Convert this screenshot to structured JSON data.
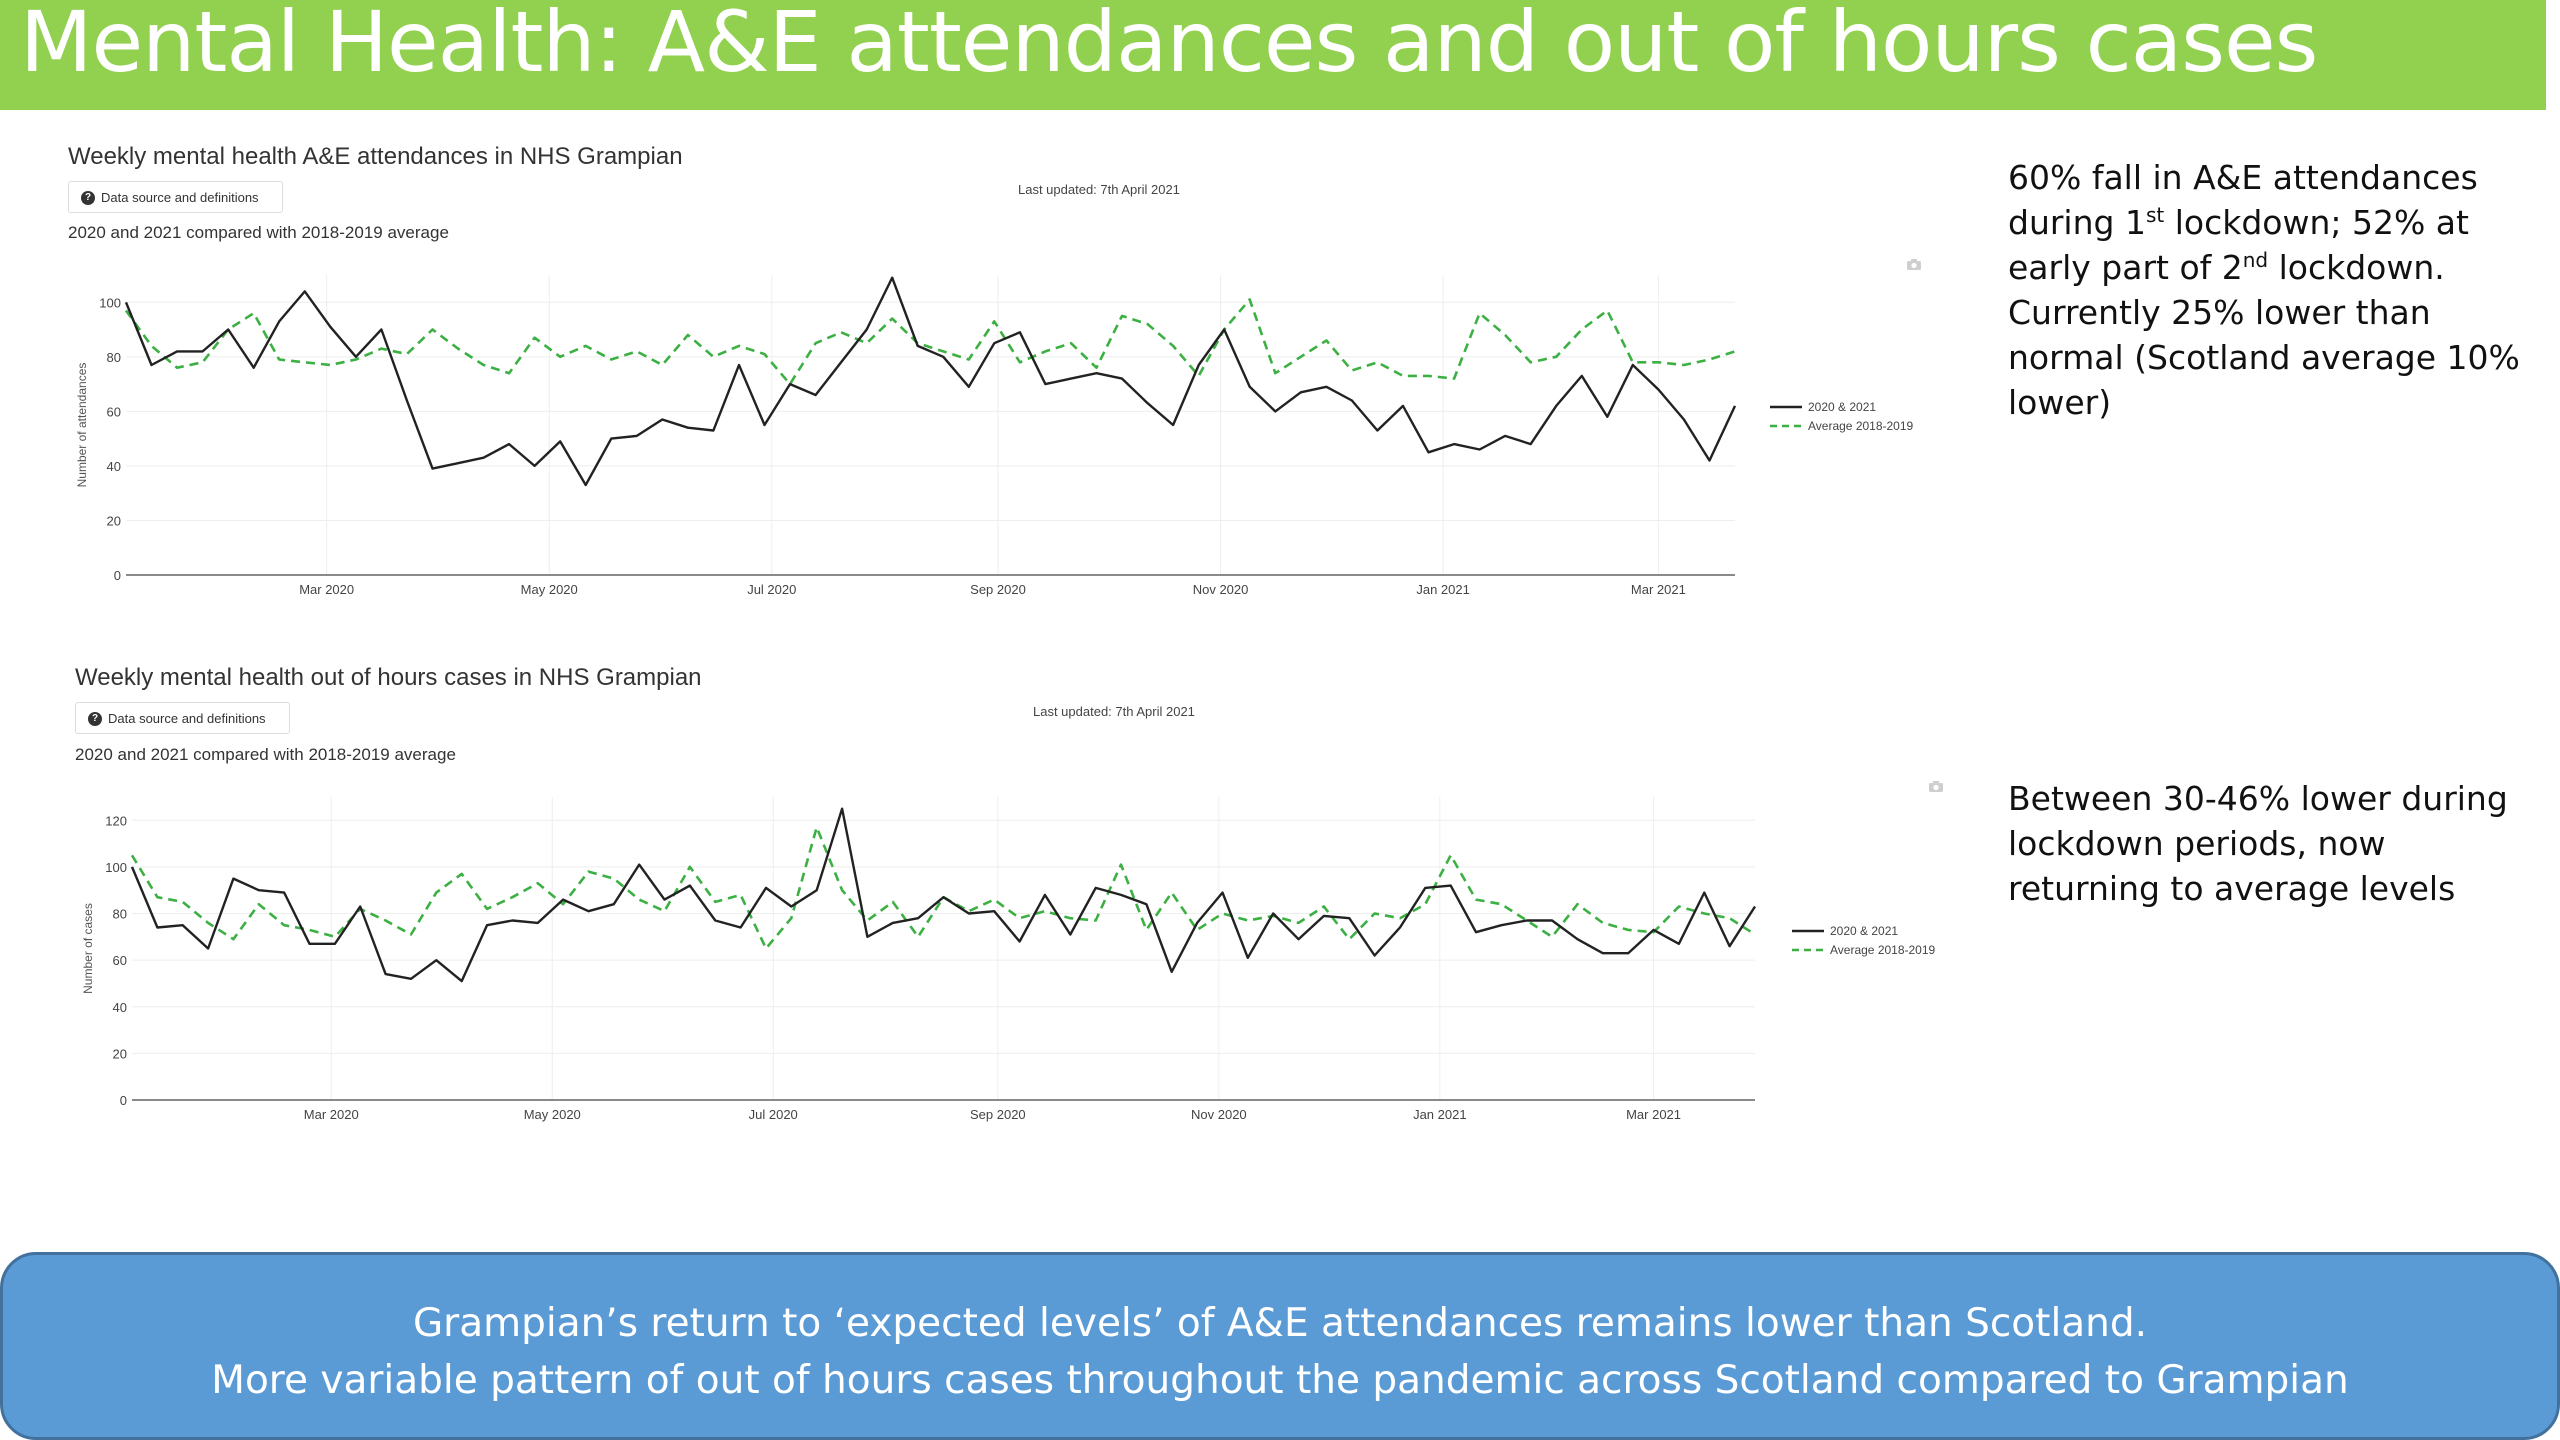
{
  "header": {
    "title": "Mental Health: A&E attendances and out of hours cases"
  },
  "charts": [
    {
      "title": "Weekly mental health A&E attendances in NHS Grampian",
      "button_label": "Data source and definitions",
      "updated": "Last updated: 7th April 2021",
      "subtitle": "2020 and 2021 compared with 2018-2019 average",
      "camera_icon": "camera-icon"
    },
    {
      "title": "Weekly mental health out of hours cases in NHS Grampian",
      "button_label": "Data source and definitions",
      "updated": "Last updated: 7th April 2021",
      "subtitle": "2020 and 2021 compared with 2018-2019 average",
      "camera_icon": "camera-icon"
    }
  ],
  "notes": {
    "ae": {
      "p1": "60% fall in A&E attendances during 1",
      "s1": "st",
      "p2": " lockdown; 52% at early part of 2",
      "s2": "nd",
      "p3": " lockdown. Currently 25% lower than normal (Scotland average 10% lower)"
    },
    "ooh": {
      "text": "Between 30-46% lower during lockdown periods, now returning to average levels"
    }
  },
  "footer": {
    "line1": "Grampian’s return to ‘expected levels’ of A&E attendances remains lower than Scotland.",
    "line2": "More variable pattern of out of hours cases throughout the pandemic across Scotland compared to Grampian"
  },
  "colors": {
    "header": "#92d050",
    "footer": "#5b9bd5",
    "series_2020": "#222222",
    "series_avg": "#3cb043"
  },
  "chart_data": [
    {
      "type": "line",
      "title": "Weekly mental health A&E attendances in NHS Grampian",
      "ylabel": "Number of attendances",
      "xlabel": "",
      "ylim": [
        0,
        110
      ],
      "yticks": [
        0,
        20,
        40,
        60,
        80,
        100
      ],
      "xticks": [
        "Mar 2020",
        "May 2020",
        "Jul 2020",
        "Sep 2020",
        "Nov 2020",
        "Jan 2021",
        "Mar 2021"
      ],
      "x_start": "2020-01-06",
      "legend_position": "right",
      "grid": true,
      "series": [
        {
          "name": "2020 & 2021",
          "style": "solid",
          "color": "#222222",
          "values": [
            100,
            77,
            82,
            82,
            90,
            76,
            93,
            104,
            91,
            80,
            90,
            64,
            39,
            41,
            43,
            48,
            40,
            49,
            33,
            50,
            51,
            57,
            54,
            53,
            77,
            55,
            70,
            66,
            78,
            90,
            109,
            84,
            80,
            69,
            85,
            89,
            70,
            72,
            74,
            72,
            63,
            55,
            77,
            90,
            69,
            60,
            67,
            69,
            64,
            53,
            62,
            45,
            48,
            46,
            51,
            48,
            62,
            73,
            58,
            77,
            68,
            57,
            42,
            62
          ]
        },
        {
          "name": "Average 2018-2019",
          "style": "dashed",
          "color": "#3cb043",
          "values": [
            97,
            84,
            76,
            78,
            90,
            96,
            79,
            78,
            77,
            79,
            83,
            81,
            90,
            83,
            77,
            74,
            87,
            80,
            84,
            79,
            82,
            77,
            88,
            80,
            84,
            81,
            70,
            85,
            89,
            85,
            94,
            85,
            82,
            79,
            93,
            78,
            82,
            85,
            76,
            95,
            92,
            84,
            73,
            90,
            101,
            74,
            80,
            86,
            75,
            78,
            73,
            73,
            72,
            96,
            88,
            78,
            80,
            90,
            97,
            78,
            78,
            77,
            79,
            82
          ]
        }
      ]
    },
    {
      "type": "line",
      "title": "Weekly mental health out of hours cases in NHS Grampian",
      "ylabel": "Number of cases",
      "xlabel": "",
      "ylim": [
        0,
        130
      ],
      "yticks": [
        0,
        20,
        40,
        60,
        80,
        100,
        120
      ],
      "xticks": [
        "Mar 2020",
        "May 2020",
        "Jul 2020",
        "Sep 2020",
        "Nov 2020",
        "Jan 2021",
        "Mar 2021"
      ],
      "x_start": "2020-01-06",
      "legend_position": "right",
      "grid": true,
      "series": [
        {
          "name": "2020 & 2021",
          "style": "solid",
          "color": "#222222",
          "values": [
            100,
            74,
            75,
            65,
            95,
            90,
            89,
            67,
            67,
            83,
            54,
            52,
            60,
            51,
            75,
            77,
            76,
            86,
            81,
            84,
            101,
            86,
            92,
            77,
            74,
            91,
            83,
            90,
            125,
            70,
            76,
            78,
            87,
            80,
            81,
            68,
            88,
            71,
            91,
            88,
            84,
            55,
            76,
            89,
            61,
            80,
            69,
            79,
            78,
            62,
            74,
            91,
            92,
            72,
            75,
            77,
            77,
            69,
            63,
            63,
            73,
            67,
            89,
            66,
            83
          ]
        },
        {
          "name": "Average 2018-2019",
          "style": "dashed",
          "color": "#3cb043",
          "values": [
            105,
            87,
            85,
            76,
            69,
            84,
            75,
            73,
            70,
            82,
            77,
            71,
            89,
            97,
            82,
            87,
            93,
            84,
            98,
            95,
            86,
            81,
            100,
            85,
            88,
            65,
            78,
            117,
            90,
            77,
            85,
            70,
            87,
            81,
            86,
            78,
            81,
            78,
            77,
            101,
            73,
            89,
            73,
            80,
            77,
            79,
            76,
            83,
            69,
            80,
            78,
            84,
            105,
            86,
            84,
            77,
            70,
            84,
            76,
            73,
            72,
            83,
            80,
            78,
            71
          ]
        }
      ]
    }
  ]
}
